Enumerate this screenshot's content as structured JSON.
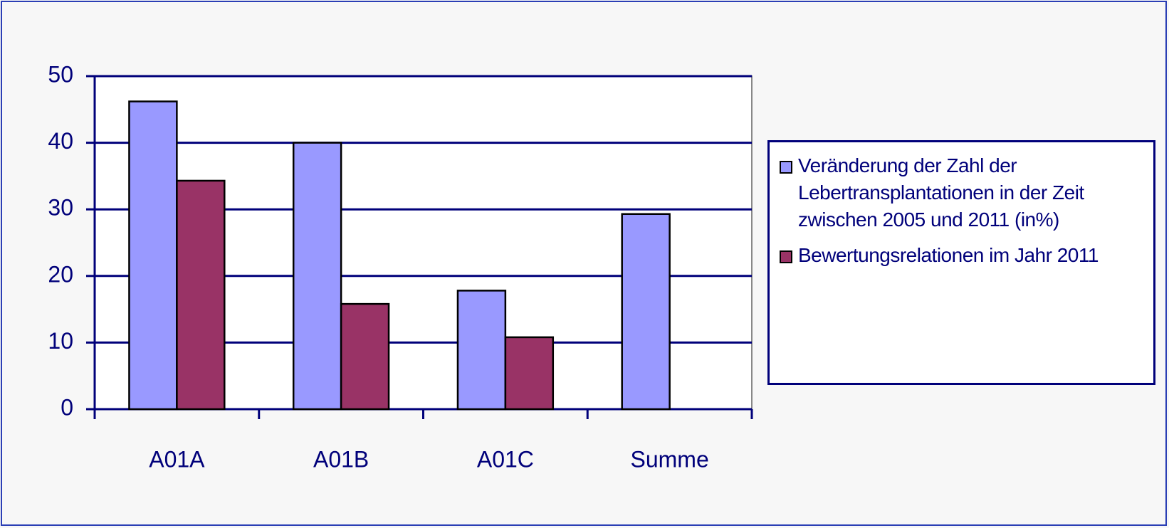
{
  "chart_data": {
    "type": "bar",
    "categories": [
      "A01A",
      "A01B",
      "A01C",
      "Summe"
    ],
    "series": [
      {
        "name": "Veränderung der Zahl der Lebertransplantationen in der Zeit zwischen 2005 und 2011 (in%)",
        "color": "#9999ff",
        "values": [
          46.2,
          40,
          17.8,
          29.3
        ]
      },
      {
        "name": "Bewertungsrelationen im Jahr 2011",
        "color": "#993366",
        "values": [
          34.3,
          15.8,
          10.8,
          null
        ]
      }
    ],
    "ylim": [
      0,
      50
    ],
    "yticks": [
      0,
      10,
      20,
      30,
      40,
      50
    ],
    "grid": true,
    "legend": "right"
  }
}
